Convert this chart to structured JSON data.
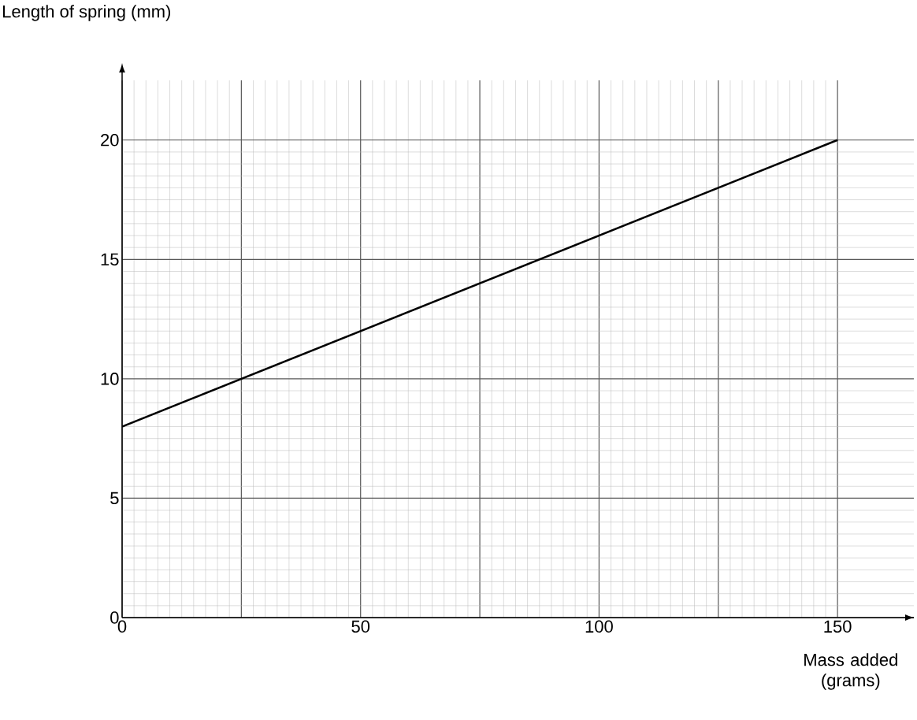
{
  "chart_data": {
    "type": "line",
    "xlabel": "Mass added (grams)",
    "ylabel": "Length of spring (mm)",
    "x": [
      0,
      150
    ],
    "series": [
      {
        "color": "#000000",
        "values": [
          8,
          20
        ]
      }
    ],
    "xlim": [
      0,
      166
    ],
    "ylim": [
      0,
      22.5
    ],
    "xticks": [
      0,
      {
        "value": 25,
        "label": null
      },
      50,
      {
        "value": 75,
        "label": null
      },
      100,
      {
        "value": 125,
        "label": null
      },
      150
    ],
    "yticks": [
      0,
      5,
      10,
      15,
      20
    ],
    "grid": true,
    "marker": "none",
    "line_style": "solid"
  }
}
